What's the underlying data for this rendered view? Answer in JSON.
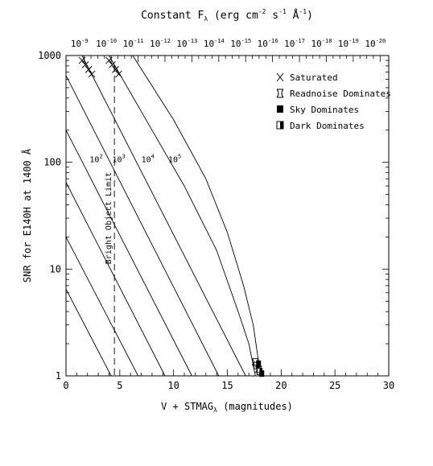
{
  "chart_data": {
    "type": "line",
    "title_prefix": "Constant F",
    "title_sub": "λ",
    "title_units": "(erg cm",
    "title_e1": "-2",
    "title_t2": " s",
    "title_e2": "-1",
    "title_t3": " Å",
    "title_e3": "-1",
    "title_close": ")",
    "xlabel_main": "V + STMAG",
    "xlabel_sub": "λ",
    "xlabel_tail": " (magnitudes)",
    "ylabel": "SNR for E140H at 1400 Å",
    "xlim": [
      0,
      30
    ],
    "ylim": [
      1,
      1000
    ],
    "yscale": "log",
    "x_ticks": [
      "0",
      "5",
      "10",
      "15",
      "20",
      "25",
      "30"
    ],
    "y_ticks": [
      "1",
      "10",
      "100",
      "1000"
    ],
    "top_ticks": [
      {
        "x": 1.7,
        "exp": "-9"
      },
      {
        "x": 4.2,
        "exp": "-10"
      },
      {
        "x": 6.7,
        "exp": "-11"
      },
      {
        "x": 9.2,
        "exp": "-12"
      },
      {
        "x": 11.7,
        "exp": "-13"
      },
      {
        "x": 14.2,
        "exp": "-14"
      },
      {
        "x": 16.7,
        "exp": "-15"
      },
      {
        "x": 19.2,
        "exp": "-16"
      },
      {
        "x": 21.7,
        "exp": "-17"
      },
      {
        "x": 24.2,
        "exp": "-18"
      },
      {
        "x": 26.7,
        "exp": "-19"
      },
      {
        "x": 29.2,
        "exp": "-20"
      }
    ],
    "top_tick_base": "10",
    "series": [
      {
        "points": [
          [
            0,
            6.5
          ],
          [
            4.2,
            1
          ]
        ]
      },
      {
        "points": [
          [
            0,
            20
          ],
          [
            6.7,
            1
          ]
        ]
      },
      {
        "points": [
          [
            0,
            65
          ],
          [
            9.2,
            1
          ]
        ]
      },
      {
        "points": [
          [
            0,
            200
          ],
          [
            11.7,
            1
          ]
        ]
      },
      {
        "points": [
          [
            0,
            650
          ],
          [
            14.2,
            1
          ]
        ]
      },
      {
        "points": [
          [
            1.5,
            1000
          ],
          [
            16.7,
            1
          ]
        ]
      },
      {
        "points": [
          [
            4.0,
            1000
          ],
          [
            8.0,
            200
          ],
          [
            11.0,
            60
          ],
          [
            14.0,
            15
          ],
          [
            16.0,
            4
          ],
          [
            17.0,
            2
          ],
          [
            17.6,
            1
          ]
        ]
      },
      {
        "points": [
          [
            6.2,
            1000
          ],
          [
            10.0,
            250
          ],
          [
            13.0,
            70
          ],
          [
            15.0,
            22
          ],
          [
            16.5,
            7
          ],
          [
            17.4,
            3
          ],
          [
            18.1,
            1
          ]
        ]
      }
    ],
    "exposure_labels": [
      {
        "x": 2.2,
        "y": 100,
        "base": "10",
        "exp": "2"
      },
      {
        "x": 4.3,
        "y": 100,
        "base": "10",
        "exp": "3"
      },
      {
        "x": 7.0,
        "y": 100,
        "base": "10",
        "exp": "4"
      },
      {
        "x": 9.5,
        "y": 100,
        "base": "10",
        "exp": "5"
      }
    ],
    "bright_limit": {
      "x": 4.5,
      "label": "Bright Object Limit"
    },
    "saturated_points": [
      [
        1.5,
        900
      ],
      [
        1.8,
        820
      ],
      [
        2.1,
        740
      ],
      [
        2.4,
        670
      ],
      [
        4.0,
        900
      ],
      [
        4.3,
        820
      ],
      [
        4.6,
        740
      ],
      [
        4.9,
        670
      ]
    ],
    "readnoise_points": [
      [
        17.6,
        1.35
      ],
      [
        17.9,
        1.15
      ]
    ],
    "sky_points": [
      [
        17.9,
        1.3
      ],
      [
        18.2,
        1.05
      ]
    ],
    "dark_points": [
      [
        17.7,
        1.25
      ],
      [
        18.0,
        1.1
      ]
    ],
    "legend": {
      "placement": "top-right",
      "items": [
        {
          "label": "Saturated",
          "marker": "x"
        },
        {
          "label": "Readnoise Dominates",
          "marker": "star"
        },
        {
          "label": "Sky Dominates",
          "marker": "filled-square"
        },
        {
          "label": "Dark Dominates",
          "marker": "half-square"
        }
      ]
    }
  }
}
